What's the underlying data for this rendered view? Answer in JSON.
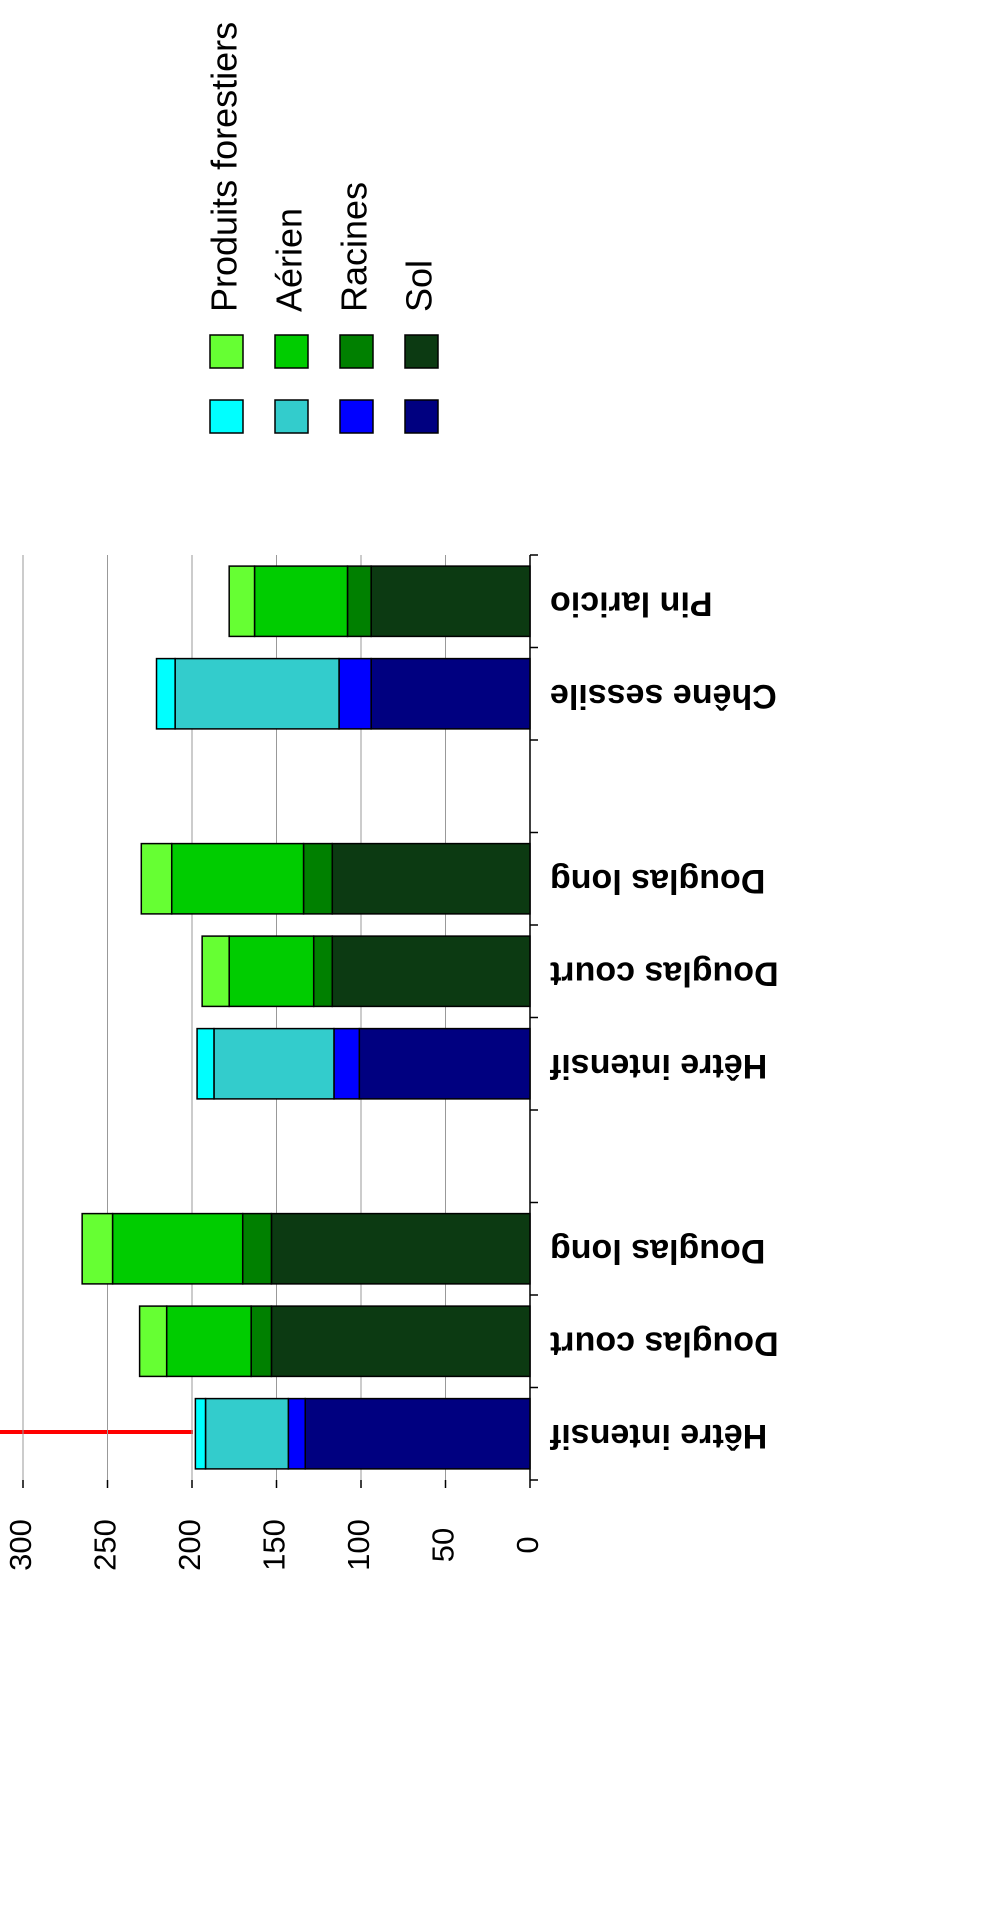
{
  "chart_data": {
    "type": "bar",
    "stacked": true,
    "orientation": "horizontal",
    "categories": [
      "Hêtre intensif",
      "Douglas court",
      "Douglas long",
      null,
      "Hêtre intensif",
      "Douglas court",
      "Douglas long",
      null,
      "Chêne sessile",
      "Pin laricio"
    ],
    "palette": [
      0,
      1,
      1,
      null,
      0,
      1,
      1,
      null,
      0,
      1
    ],
    "series": [
      {
        "name": "Sol",
        "colors": [
          "#000080",
          "#0c3a12"
        ],
        "values": [
          133,
          153,
          153,
          null,
          101,
          117,
          117,
          null,
          94,
          94
        ]
      },
      {
        "name": "Racines",
        "colors": [
          "#0000ff",
          "#008000"
        ],
        "values": [
          10,
          12,
          17,
          null,
          15,
          11,
          17,
          null,
          19,
          14
        ]
      },
      {
        "name": "Aérien",
        "colors": [
          "#33cccc",
          "#00cc00"
        ],
        "values": [
          49,
          50,
          77,
          null,
          71,
          50,
          78,
          null,
          97,
          55
        ]
      },
      {
        "name": "Produits forestiers",
        "colors": [
          "#00ffff",
          "#66ff33"
        ],
        "values": [
          6,
          16,
          18,
          null,
          10,
          16,
          18,
          null,
          11,
          15
        ]
      }
    ],
    "ylim": [
      0,
      300
    ],
    "yticks": [
      0,
      50,
      100,
      150,
      200,
      250,
      300
    ],
    "grid": true
  }
}
